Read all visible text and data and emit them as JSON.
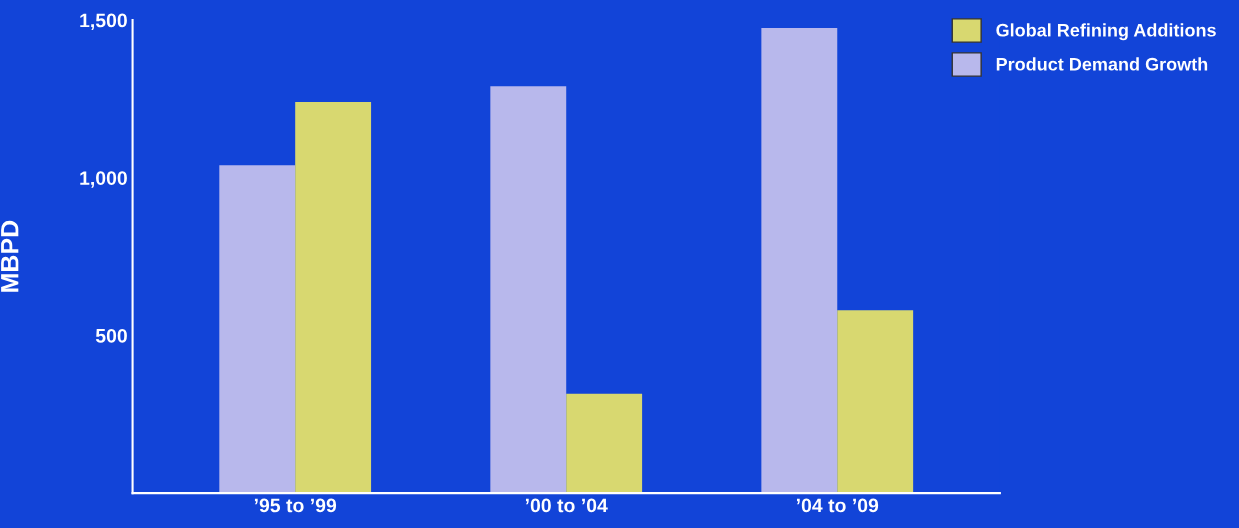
{
  "chart_data": {
    "type": "bar",
    "ylabel": "MBPD",
    "categories": [
      "’95 to ’99",
      "’00 to ’04",
      "’04 to ’09"
    ],
    "series": [
      {
        "name": "Product Demand Growth",
        "color": "#b8b8ec",
        "values": [
          1040,
          1290,
          1475
        ]
      },
      {
        "name": "Global Refining Additions",
        "color": "#d8d870",
        "values": [
          1240,
          315,
          580
        ]
      }
    ],
    "ylim": [
      0,
      1500
    ],
    "yticks": [
      {
        "value": 500,
        "label": "500"
      },
      {
        "value": 1000,
        "label": "1,000"
      },
      {
        "value": 1500,
        "label": "1,500"
      }
    ],
    "grid": false,
    "legend": "top right"
  }
}
